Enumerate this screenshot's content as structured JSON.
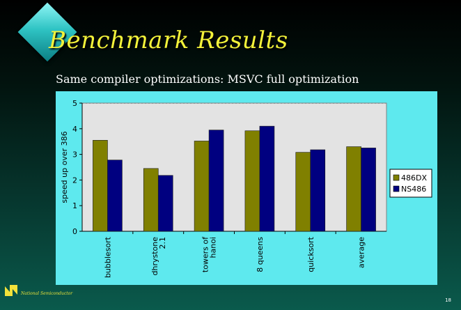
{
  "slide": {
    "title": "Benchmark Results",
    "subtitle": "Same compiler optimizations: MSVC full optimization",
    "footer_text": "National Semiconductor",
    "page_number": "18"
  },
  "colors": {
    "series_486dx": "#808000",
    "series_ns486": "#000080",
    "plot_background": "#e3e3e3",
    "panel_background": "#5ee9ee"
  },
  "chart_data": {
    "type": "bar",
    "title": "",
    "xlabel": "",
    "ylabel": "speed up over 386",
    "ylim": [
      0,
      5
    ],
    "yticks": [
      0,
      1,
      2,
      3,
      4,
      5
    ],
    "grid": false,
    "legend_position": "right",
    "categories": [
      [
        "bubblesort"
      ],
      [
        "dhrystone",
        "2.1"
      ],
      [
        "towers of",
        "hanoi"
      ],
      [
        "8 queens"
      ],
      [
        "quicksort"
      ],
      [
        "average"
      ]
    ],
    "series": [
      {
        "name": "486DX",
        "values": [
          3.55,
          2.45,
          3.52,
          3.92,
          3.08,
          3.3
        ]
      },
      {
        "name": "NS486",
        "values": [
          2.78,
          2.18,
          3.95,
          4.1,
          3.18,
          3.25
        ]
      }
    ]
  }
}
